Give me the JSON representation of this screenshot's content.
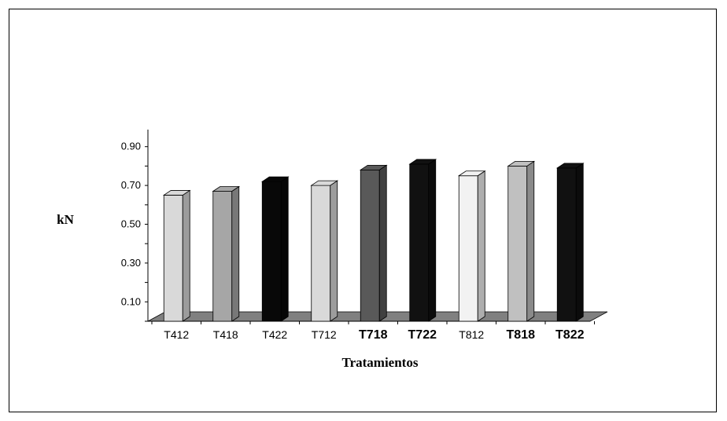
{
  "chart_data": {
    "type": "bar",
    "title": "",
    "xlabel": "Tratamientos",
    "ylabel": "kN",
    "ylim": [
      0.0,
      0.9
    ],
    "yticks": [
      "0.10",
      "0.30",
      "0.50",
      "0.70",
      "0.90"
    ],
    "grid": false,
    "legend": "none",
    "categories": [
      "T412",
      "T418",
      "T422",
      "T712",
      "T718",
      "T722",
      "T812",
      "T818",
      "T822"
    ],
    "bold_categories": [
      false,
      false,
      false,
      false,
      true,
      true,
      false,
      true,
      true
    ],
    "values": [
      0.65,
      0.67,
      0.72,
      0.7,
      0.78,
      0.81,
      0.75,
      0.8,
      0.79
    ],
    "bar_colors": [
      "#d9d9d9",
      "#a6a6a6",
      "#080808",
      "#d9d9d9",
      "#595959",
      "#111111",
      "#f2f2f2",
      "#c0c0c0",
      "#111111"
    ],
    "floor_color": "#808080"
  }
}
